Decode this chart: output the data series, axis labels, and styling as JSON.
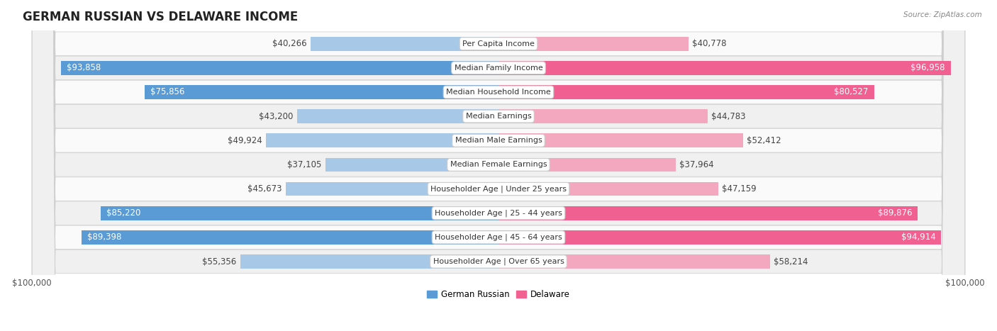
{
  "title": "GERMAN RUSSIAN VS DELAWARE INCOME",
  "source": "Source: ZipAtlas.com",
  "categories": [
    "Per Capita Income",
    "Median Family Income",
    "Median Household Income",
    "Median Earnings",
    "Median Male Earnings",
    "Median Female Earnings",
    "Householder Age | Under 25 years",
    "Householder Age | 25 - 44 years",
    "Householder Age | 45 - 64 years",
    "Householder Age | Over 65 years"
  ],
  "left_values": [
    40266,
    93858,
    75856,
    43200,
    49924,
    37105,
    45673,
    85220,
    89398,
    55356
  ],
  "right_values": [
    40778,
    96958,
    80527,
    44783,
    52412,
    37964,
    47159,
    89876,
    94914,
    58214
  ],
  "left_labels": [
    "$40,266",
    "$93,858",
    "$75,856",
    "$43,200",
    "$49,924",
    "$37,105",
    "$45,673",
    "$85,220",
    "$89,398",
    "$55,356"
  ],
  "right_labels": [
    "$40,778",
    "$96,958",
    "$80,527",
    "$44,783",
    "$52,412",
    "$37,964",
    "$47,159",
    "$89,876",
    "$94,914",
    "$58,214"
  ],
  "max_value": 100000,
  "left_color_light": "#a8c8e8",
  "left_color_dark": "#5b9bd5",
  "right_color_light": "#f4a8c0",
  "right_color_dark": "#f06090",
  "threshold": 70000,
  "bar_height": 0.58,
  "row_bg_odd": "#f0f0f0",
  "row_bg_even": "#fafafa",
  "label_fontsize": 8.5,
  "title_fontsize": 12,
  "category_fontsize": 8,
  "legend_fontsize": 8.5
}
